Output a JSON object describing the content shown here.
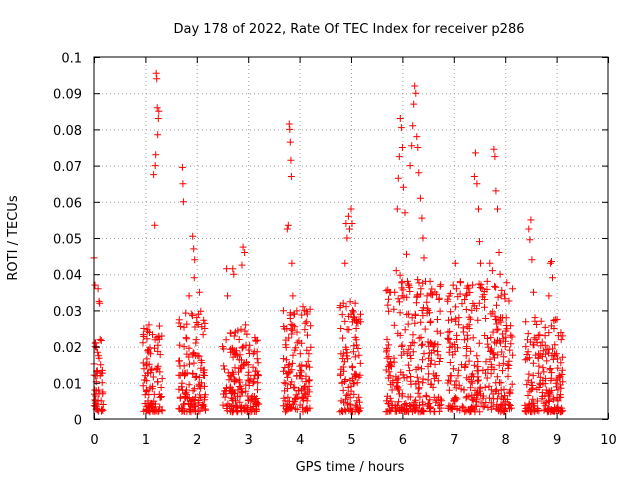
{
  "chart_data": {
    "type": "scatter",
    "title": "Day 178 of 2022, Rate Of TEC Index for receiver p286",
    "xlabel": "GPS time / hours",
    "ylabel": "ROTI / TECUs",
    "xlim": [
      0,
      10
    ],
    "ylim": [
      0,
      0.1
    ],
    "xticks": [
      0,
      1,
      2,
      3,
      4,
      5,
      6,
      7,
      8,
      9,
      10
    ],
    "xtick_labels": [
      "0",
      "1",
      "2",
      "3",
      "4",
      "5",
      "6",
      "7",
      "8",
      "9",
      "10"
    ],
    "yticks": [
      0,
      0.01,
      0.02,
      0.03,
      0.04,
      0.05,
      0.06,
      0.07,
      0.08,
      0.09,
      0.1
    ],
    "ytick_labels": [
      "0",
      "0.01",
      "0.02",
      "0.03",
      "0.04",
      "0.05",
      "0.06",
      "0.07",
      "0.08",
      "0.09",
      "0.1"
    ],
    "grid": true,
    "marker": "+",
    "color": "#ff0000",
    "series": [
      {
        "name": "ROTI",
        "points": [
          [
            0.0,
            0.0445
          ],
          [
            0.02,
            0.037
          ],
          [
            0.03,
            0.005
          ],
          [
            0.05,
            0.003
          ],
          [
            0.06,
            0.012
          ],
          [
            0.08,
            0.036
          ],
          [
            0.09,
            0.008
          ],
          [
            0.1,
            0.0325
          ],
          [
            0.11,
            0.032
          ],
          [
            0.12,
            0.022
          ],
          [
            0.13,
            0.015
          ],
          [
            0.14,
            0.005
          ],
          [
            0.15,
            0.0025
          ],
          [
            0.16,
            0.01
          ],
          [
            0.17,
            0.007
          ],
          [
            0.18,
            0.004
          ],
          [
            0.97,
            0.025
          ],
          [
            1.0,
            0.012
          ],
          [
            1.02,
            0.008
          ],
          [
            1.05,
            0.005
          ],
          [
            1.07,
            0.026
          ],
          [
            1.1,
            0.018
          ],
          [
            1.12,
            0.0035
          ],
          [
            1.14,
            0.009
          ],
          [
            1.16,
            0.0675
          ],
          [
            1.18,
            0.0535
          ],
          [
            1.19,
            0.07
          ],
          [
            1.2,
            0.073
          ],
          [
            1.21,
            0.0955
          ],
          [
            1.22,
            0.094
          ],
          [
            1.23,
            0.086
          ],
          [
            1.24,
            0.0785
          ],
          [
            1.25,
            0.083
          ],
          [
            1.26,
            0.085
          ],
          [
            1.27,
            0.022
          ],
          [
            1.28,
            0.013
          ],
          [
            1.3,
            0.006
          ],
          [
            1.32,
            0.0025
          ],
          [
            1.65,
            0.016
          ],
          [
            1.68,
            0.006
          ],
          [
            1.7,
            0.003
          ],
          [
            1.72,
            0.0695
          ],
          [
            1.73,
            0.065
          ],
          [
            1.74,
            0.06
          ],
          [
            1.76,
            0.012
          ],
          [
            1.8,
            0.008
          ],
          [
            1.85,
            0.034
          ],
          [
            1.9,
            0.029
          ],
          [
            1.92,
            0.0505
          ],
          [
            1.94,
            0.047
          ],
          [
            1.95,
            0.039
          ],
          [
            1.96,
            0.044
          ],
          [
            1.98,
            0.021
          ],
          [
            2.0,
            0.028
          ],
          [
            2.05,
            0.035
          ],
          [
            2.08,
            0.014
          ],
          [
            2.12,
            0.004
          ],
          [
            2.15,
            0.009
          ],
          [
            2.5,
            0.02
          ],
          [
            2.55,
            0.006
          ],
          [
            2.58,
            0.0415
          ],
          [
            2.6,
            0.034
          ],
          [
            2.65,
            0.012
          ],
          [
            2.7,
            0.0415
          ],
          [
            2.72,
            0.04
          ],
          [
            2.75,
            0.024
          ],
          [
            2.8,
            0.008
          ],
          [
            2.85,
            0.003
          ],
          [
            2.88,
            0.0425
          ],
          [
            2.9,
            0.0475
          ],
          [
            2.93,
            0.046
          ],
          [
            2.95,
            0.026
          ],
          [
            3.0,
            0.015
          ],
          [
            3.05,
            0.005
          ],
          [
            3.1,
            0.018
          ],
          [
            3.15,
            0.004
          ],
          [
            3.2,
            0.012
          ],
          [
            3.7,
            0.01
          ],
          [
            3.72,
            0.005
          ],
          [
            3.75,
            0.025
          ],
          [
            3.76,
            0.0525
          ],
          [
            3.78,
            0.0535
          ],
          [
            3.8,
            0.0815
          ],
          [
            3.81,
            0.08
          ],
          [
            3.82,
            0.0765
          ],
          [
            3.83,
            0.0715
          ],
          [
            3.84,
            0.067
          ],
          [
            3.85,
            0.043
          ],
          [
            3.87,
            0.034
          ],
          [
            3.9,
            0.029
          ],
          [
            3.95,
            0.024
          ],
          [
            4.0,
            0.012
          ],
          [
            4.05,
            0.006
          ],
          [
            4.1,
            0.03
          ],
          [
            4.15,
            0.029
          ],
          [
            4.18,
            0.018
          ],
          [
            4.2,
            0.003
          ],
          [
            4.8,
            0.025
          ],
          [
            4.85,
            0.018
          ],
          [
            4.88,
            0.043
          ],
          [
            4.9,
            0.054
          ],
          [
            4.92,
            0.05
          ],
          [
            4.95,
            0.056
          ],
          [
            4.97,
            0.0525
          ],
          [
            5.0,
            0.058
          ],
          [
            5.02,
            0.054
          ],
          [
            5.05,
            0.028
          ],
          [
            5.08,
            0.032
          ],
          [
            5.1,
            0.025
          ],
          [
            5.12,
            0.01
          ],
          [
            5.15,
            0.006
          ],
          [
            5.18,
            0.003
          ],
          [
            5.7,
            0.022
          ],
          [
            5.75,
            0.015
          ],
          [
            5.8,
            0.008
          ],
          [
            5.85,
            0.035
          ],
          [
            5.88,
            0.041
          ],
          [
            5.9,
            0.058
          ],
          [
            5.92,
            0.0665
          ],
          [
            5.94,
            0.0725
          ],
          [
            5.96,
            0.083
          ],
          [
            5.98,
            0.0805
          ],
          [
            6.0,
            0.075
          ],
          [
            6.02,
            0.064
          ],
          [
            6.05,
            0.057
          ],
          [
            6.08,
            0.0455
          ],
          [
            6.1,
            0.038
          ],
          [
            6.12,
            0.029
          ],
          [
            6.15,
            0.07
          ],
          [
            6.18,
            0.0755
          ],
          [
            6.2,
            0.081
          ],
          [
            6.22,
            0.087
          ],
          [
            6.24,
            0.092
          ],
          [
            6.26,
            0.09
          ],
          [
            6.28,
            0.078
          ],
          [
            6.3,
            0.075
          ],
          [
            6.32,
            0.068
          ],
          [
            6.35,
            0.061
          ],
          [
            6.38,
            0.0555
          ],
          [
            6.4,
            0.05
          ],
          [
            6.42,
            0.0445
          ],
          [
            6.45,
            0.038
          ],
          [
            6.48,
            0.034
          ],
          [
            6.5,
            0.03
          ],
          [
            6.55,
            0.027
          ],
          [
            6.6,
            0.02
          ],
          [
            6.65,
            0.012
          ],
          [
            6.7,
            0.006
          ],
          [
            6.75,
            0.003
          ],
          [
            6.9,
            0.022
          ],
          [
            6.95,
            0.012
          ],
          [
            7.0,
            0.005
          ],
          [
            7.03,
            0.043
          ],
          [
            7.05,
            0.036
          ],
          [
            7.1,
            0.028
          ],
          [
            7.15,
            0.015
          ],
          [
            7.2,
            0.008
          ],
          [
            7.25,
            0.02
          ],
          [
            7.3,
            0.025
          ],
          [
            7.35,
            0.03
          ],
          [
            7.4,
            0.067
          ],
          [
            7.42,
            0.0735
          ],
          [
            7.45,
            0.065
          ],
          [
            7.48,
            0.058
          ],
          [
            7.5,
            0.049
          ],
          [
            7.52,
            0.043
          ],
          [
            7.55,
            0.036
          ],
          [
            7.6,
            0.033
          ],
          [
            7.65,
            0.038
          ],
          [
            7.7,
            0.043
          ],
          [
            7.75,
            0.041
          ],
          [
            7.78,
            0.0745
          ],
          [
            7.8,
            0.0725
          ],
          [
            7.82,
            0.063
          ],
          [
            7.85,
            0.058
          ],
          [
            7.88,
            0.046
          ],
          [
            7.9,
            0.04
          ],
          [
            7.92,
            0.034
          ],
          [
            7.95,
            0.028
          ],
          [
            8.0,
            0.02
          ],
          [
            8.05,
            0.015
          ],
          [
            8.1,
            0.008
          ],
          [
            8.12,
            0.003
          ],
          [
            8.4,
            0.02
          ],
          [
            8.42,
            0.0095
          ],
          [
            8.44,
            0.003
          ],
          [
            8.46,
            0.0525
          ],
          [
            8.48,
            0.0495
          ],
          [
            8.5,
            0.055
          ],
          [
            8.52,
            0.044
          ],
          [
            8.55,
            0.035
          ],
          [
            8.58,
            0.028
          ],
          [
            8.6,
            0.022
          ],
          [
            8.65,
            0.018
          ],
          [
            8.7,
            0.027
          ],
          [
            8.75,
            0.013
          ],
          [
            8.8,
            0.008
          ],
          [
            8.85,
            0.034
          ],
          [
            8.88,
            0.043
          ],
          [
            8.9,
            0.0435
          ],
          [
            8.92,
            0.039
          ],
          [
            8.95,
            0.025
          ],
          [
            9.0,
            0.018
          ],
          [
            9.05,
            0.012
          ],
          [
            9.08,
            0.006
          ],
          [
            9.1,
            0.003
          ]
        ],
        "clusters": [
          {
            "start": 0.0,
            "end": 0.18,
            "peak": 0.0445,
            "dense_max": 0.022
          },
          {
            "start": 0.95,
            "end": 1.33,
            "peak": 0.0955,
            "dense_max": 0.026
          },
          {
            "start": 1.65,
            "end": 2.17,
            "peak": 0.0695,
            "dense_max": 0.03
          },
          {
            "start": 2.5,
            "end": 3.22,
            "peak": 0.0475,
            "dense_max": 0.025
          },
          {
            "start": 3.68,
            "end": 4.22,
            "peak": 0.0815,
            "dense_max": 0.031
          },
          {
            "start": 4.78,
            "end": 5.2,
            "peak": 0.058,
            "dense_max": 0.033
          },
          {
            "start": 5.68,
            "end": 6.78,
            "peak": 0.092,
            "dense_max": 0.04
          },
          {
            "start": 6.88,
            "end": 8.15,
            "peak": 0.0745,
            "dense_max": 0.038
          },
          {
            "start": 8.38,
            "end": 9.12,
            "peak": 0.055,
            "dense_max": 0.028
          }
        ]
      }
    ]
  }
}
